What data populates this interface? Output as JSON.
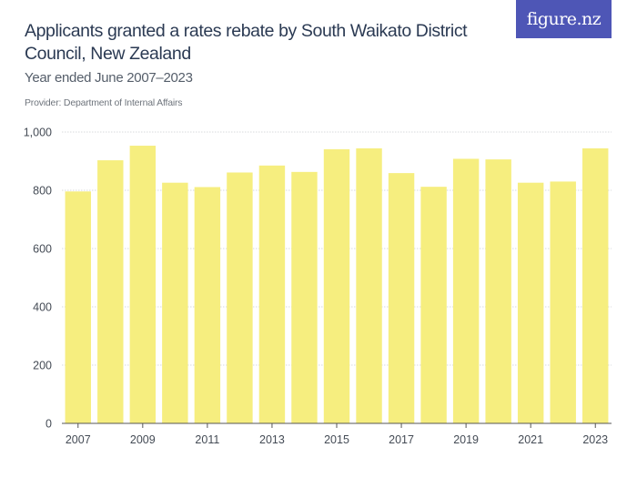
{
  "header": {
    "title": "Applicants granted a rates rebate by South Waikato District Council, New Zealand",
    "subtitle": "Year ended June 2007–2023",
    "provider": "Provider: Department of Internal Affairs",
    "logo_text": "figure.nz"
  },
  "colors": {
    "bar": "#f6ee7f",
    "grid": "#d7d9dd",
    "axis": "#555555",
    "logo_bg": "#4e56b6"
  },
  "chart_data": {
    "type": "bar",
    "title": "Applicants granted a rates rebate by South Waikato District Council, New Zealand",
    "subtitle": "Year ended June 2007–2023",
    "categories": [
      "2007",
      "2008",
      "2009",
      "2010",
      "2011",
      "2012",
      "2013",
      "2014",
      "2015",
      "2016",
      "2017",
      "2018",
      "2019",
      "2020",
      "2021",
      "2022",
      "2023"
    ],
    "values": [
      796,
      903,
      953,
      826,
      811,
      861,
      885,
      863,
      941,
      944,
      859,
      812,
      908,
      906,
      826,
      830,
      944
    ],
    "x_tick_labels": [
      "2007",
      "2009",
      "2011",
      "2013",
      "2015",
      "2017",
      "2019",
      "2021",
      "2023"
    ],
    "y_tick_labels": [
      "0",
      "200",
      "400",
      "600",
      "800",
      "1,000"
    ],
    "y_ticks": [
      0,
      200,
      400,
      600,
      800,
      1000
    ],
    "ylim": [
      0,
      1000
    ],
    "xlabel": "",
    "ylabel": "",
    "grid": true,
    "legend": "none"
  }
}
